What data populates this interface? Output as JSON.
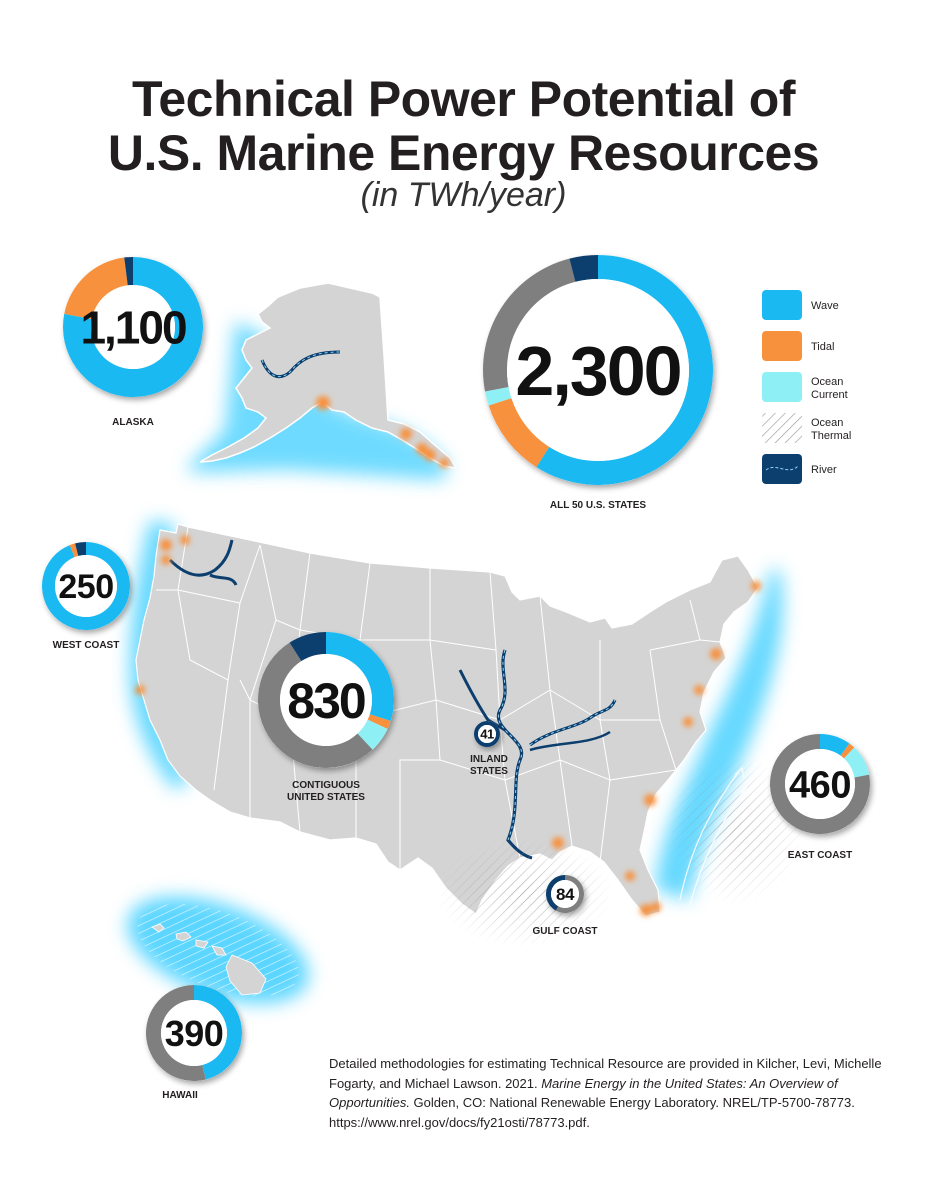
{
  "title_line1": "Technical Power Potential of",
  "title_line2": "U.S.  Marine Energy Resources",
  "subtitle": "(in TWh/year)",
  "colors": {
    "wave": "#1ab9f2",
    "tidal": "#f7913d",
    "ocean_current": "#8ef0f5",
    "ocean_thermal": "#7f7f7f",
    "river": "#0c3e6e",
    "land": "#d4d4d4",
    "glow": "#4cd2ff"
  },
  "legend": [
    {
      "key": "wave",
      "label": "Wave"
    },
    {
      "key": "tidal",
      "label": "Tidal"
    },
    {
      "key": "ocean_current",
      "label": "Ocean\nCurrent"
    },
    {
      "key": "ocean_thermal",
      "label": "Ocean\nThermal"
    },
    {
      "key": "river",
      "label": "River"
    }
  ],
  "regions": [
    {
      "id": "alaska",
      "label": "ALASKA",
      "value": "1,100",
      "shares": {
        "wave": 0.78,
        "tidal": 0.2,
        "ocean_current": 0,
        "ocean_thermal": 0,
        "river": 0.02
      }
    },
    {
      "id": "all",
      "label": "ALL 50 U.S. STATES",
      "value": "2,300",
      "shares": {
        "wave": 0.59,
        "tidal": 0.11,
        "ocean_current": 0.02,
        "ocean_thermal": 0.24,
        "river": 0.04
      }
    },
    {
      "id": "west",
      "label": "WEST COAST",
      "value": "250",
      "shares": {
        "wave": 0.94,
        "tidal": 0.02,
        "ocean_current": 0,
        "ocean_thermal": 0,
        "river": 0.04
      }
    },
    {
      "id": "contig",
      "label": "CONTIGUOUS\nUNITED STATES",
      "value": "830",
      "shares": {
        "wave": 0.3,
        "tidal": 0.02,
        "ocean_current": 0.06,
        "ocean_thermal": 0.53,
        "river": 0.09
      }
    },
    {
      "id": "inland",
      "label": "INLAND\nSTATES",
      "value": "41",
      "shares": {
        "wave": 0,
        "tidal": 0,
        "ocean_current": 0,
        "ocean_thermal": 0,
        "river": 1
      }
    },
    {
      "id": "east",
      "label": "EAST COAST",
      "value": "460",
      "shares": {
        "wave": 0.1,
        "tidal": 0.02,
        "ocean_current": 0.1,
        "ocean_thermal": 0.78,
        "river": 0
      }
    },
    {
      "id": "gulf",
      "label": "GULF COAST",
      "value": "84",
      "shares": {
        "wave": 0,
        "tidal": 0,
        "ocean_current": 0,
        "ocean_thermal": 0.58,
        "river": 0.42
      }
    },
    {
      "id": "hawaii",
      "label": "HAWAII",
      "value": "390",
      "shares": {
        "wave": 0.46,
        "tidal": 0,
        "ocean_current": 0,
        "ocean_thermal": 0.54,
        "river": 0
      }
    }
  ],
  "citation": {
    "line_a": "Detailed methodologies for estimating Technical Resource are provided in Kilcher, Levi, Michelle Fogarty, and Michael Lawson. 2021. ",
    "italic": "Marine Energy in the United States: An Overview of Opportunities.",
    "line_b": " Golden, CO: National Renewable Energy Laboratory. NREL/TP-5700-78773. https://www.nrel.gov/docs/fy21osti/78773.pdf."
  }
}
